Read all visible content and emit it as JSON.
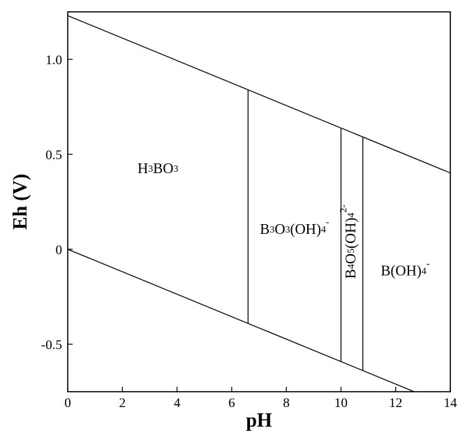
{
  "chart_data": {
    "type": "line",
    "title": "",
    "xlabel": "pH",
    "ylabel": "Eh (V)",
    "xlim": [
      0,
      14
    ],
    "ylim": [
      -0.75,
      1.25
    ],
    "xticks": [
      0,
      2,
      4,
      6,
      8,
      10,
      12,
      14
    ],
    "xtick_labels": [
      "0",
      "2",
      "4",
      "6",
      "8",
      "10",
      "12",
      "14"
    ],
    "yticks": [
      -0.5,
      0,
      0.5,
      1.0
    ],
    "ytick_labels": [
      "-0.5",
      "0",
      "0.5",
      "1.0"
    ],
    "grid": false,
    "lines": [
      {
        "id": "water-upper",
        "x": [
          0,
          14
        ],
        "y": [
          1.23,
          0.402
        ]
      },
      {
        "id": "water-lower",
        "x": [
          0,
          12.68
        ],
        "y": [
          0,
          -0.75
        ]
      },
      {
        "id": "b1",
        "x": [
          6.6,
          6.6
        ],
        "y": [
          0.84,
          -0.39
        ]
      },
      {
        "id": "b2",
        "x": [
          10.0,
          10.0
        ],
        "y": [
          0.638,
          -0.592
        ]
      },
      {
        "id": "b3",
        "x": [
          10.8,
          10.8
        ],
        "y": [
          0.591,
          -0.639
        ]
      }
    ],
    "regions": [
      {
        "id": "h3bo3",
        "main": [
          "H",
          "3",
          "BO",
          "3"
        ],
        "sup": "",
        "x": 3.3,
        "y": 0.42,
        "rotate": 0
      },
      {
        "id": "b3o3",
        "main": [
          "B",
          "3",
          "O",
          "3",
          "(OH)",
          "4"
        ],
        "sup": "-",
        "x": 8.3,
        "y": 0.1,
        "rotate": 0
      },
      {
        "id": "b4o5",
        "main": [
          "B",
          "4",
          "O",
          "5",
          "(OH)",
          "4"
        ],
        "sup": "2-",
        "x": 10.4,
        "y": 0.04,
        "rotate": -90
      },
      {
        "id": "boh4",
        "main": [
          "B(OH)",
          "4"
        ],
        "sup": "-",
        "x": 12.35,
        "y": -0.12,
        "rotate": 0
      }
    ]
  }
}
